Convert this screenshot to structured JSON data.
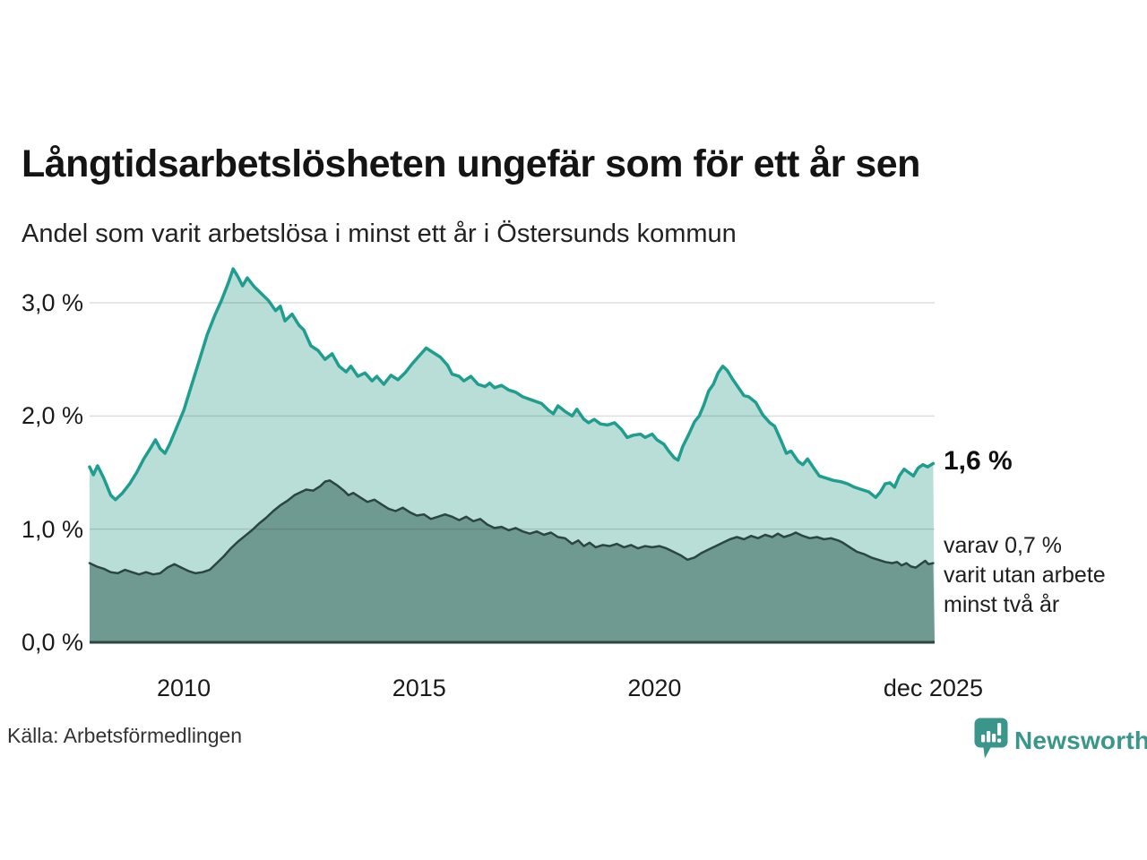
{
  "header": {
    "title": "Långtidsarbetslösheten ungefär som för ett år sen",
    "subtitle": "Andel som varit arbetslösa i minst ett år i Östersunds kommun"
  },
  "annotations": {
    "latest_value": "1,6 %",
    "sub_line_1": "varav 0,7 %",
    "sub_line_2": "varit utan arbete",
    "sub_line_3": "minst två år"
  },
  "source": {
    "label": "Källa: Arbetsförmedlingen"
  },
  "branding": {
    "name": "Newsworthy",
    "icon": "newsworthy-bubble-bar-chart-icon",
    "color": "#3a968b"
  },
  "chart_data": {
    "type": "area",
    "title": "Långtidsarbetslösheten ungefär som för ett år sen",
    "subtitle": "Andel som varit arbetslösa i minst ett år i Östersunds kommun",
    "unit": "%",
    "grid": true,
    "grid_color": "rgba(0,0,0,0.13)",
    "baseline_color": "#2b4641",
    "x_range": [
      2008.0,
      2025.95
    ],
    "y_range": [
      0,
      3.38
    ],
    "y_ticks": [
      {
        "value": 0,
        "label": "0,0 %"
      },
      {
        "value": 1,
        "label": "1,0 %"
      },
      {
        "value": 2,
        "label": "2,0 %"
      },
      {
        "value": 3,
        "label": "3,0 %"
      }
    ],
    "x_ticks": [
      {
        "value": 2010,
        "label": "2010"
      },
      {
        "value": 2015,
        "label": "2015"
      },
      {
        "value": 2020,
        "label": "2020"
      },
      {
        "value": 2025.92,
        "label": "dec 2025"
      }
    ],
    "series": [
      {
        "name": "Arbetslösa minst ett år",
        "latest_label": "1,6 %",
        "line_color": "#1f9e8f",
        "fill_color": "#b9ded8",
        "line_width": 3.5,
        "points": [
          [
            2008.0,
            1.55
          ],
          [
            2008.08,
            1.48
          ],
          [
            2008.17,
            1.56
          ],
          [
            2008.3,
            1.45
          ],
          [
            2008.45,
            1.3
          ],
          [
            2008.55,
            1.26
          ],
          [
            2008.7,
            1.32
          ],
          [
            2008.85,
            1.4
          ],
          [
            2009.0,
            1.5
          ],
          [
            2009.15,
            1.62
          ],
          [
            2009.3,
            1.72
          ],
          [
            2009.4,
            1.79
          ],
          [
            2009.5,
            1.71
          ],
          [
            2009.6,
            1.67
          ],
          [
            2009.7,
            1.75
          ],
          [
            2009.85,
            1.9
          ],
          [
            2010.0,
            2.05
          ],
          [
            2010.15,
            2.25
          ],
          [
            2010.3,
            2.45
          ],
          [
            2010.5,
            2.72
          ],
          [
            2010.65,
            2.88
          ],
          [
            2010.8,
            3.02
          ],
          [
            2010.95,
            3.18
          ],
          [
            2011.05,
            3.3
          ],
          [
            2011.15,
            3.23
          ],
          [
            2011.25,
            3.15
          ],
          [
            2011.35,
            3.22
          ],
          [
            2011.5,
            3.14
          ],
          [
            2011.65,
            3.08
          ],
          [
            2011.8,
            3.02
          ],
          [
            2011.95,
            2.93
          ],
          [
            2012.05,
            2.97
          ],
          [
            2012.15,
            2.84
          ],
          [
            2012.3,
            2.9
          ],
          [
            2012.45,
            2.8
          ],
          [
            2012.55,
            2.76
          ],
          [
            2012.7,
            2.62
          ],
          [
            2012.85,
            2.58
          ],
          [
            2013.0,
            2.5
          ],
          [
            2013.15,
            2.55
          ],
          [
            2013.3,
            2.44
          ],
          [
            2013.45,
            2.39
          ],
          [
            2013.55,
            2.44
          ],
          [
            2013.7,
            2.35
          ],
          [
            2013.85,
            2.38
          ],
          [
            2014.0,
            2.31
          ],
          [
            2014.1,
            2.35
          ],
          [
            2014.25,
            2.28
          ],
          [
            2014.4,
            2.36
          ],
          [
            2014.55,
            2.32
          ],
          [
            2014.7,
            2.38
          ],
          [
            2014.85,
            2.46
          ],
          [
            2015.0,
            2.53
          ],
          [
            2015.15,
            2.6
          ],
          [
            2015.3,
            2.56
          ],
          [
            2015.45,
            2.52
          ],
          [
            2015.6,
            2.45
          ],
          [
            2015.7,
            2.37
          ],
          [
            2015.85,
            2.35
          ],
          [
            2015.95,
            2.31
          ],
          [
            2016.1,
            2.35
          ],
          [
            2016.25,
            2.28
          ],
          [
            2016.4,
            2.26
          ],
          [
            2016.5,
            2.29
          ],
          [
            2016.6,
            2.25
          ],
          [
            2016.75,
            2.27
          ],
          [
            2016.9,
            2.23
          ],
          [
            2017.05,
            2.21
          ],
          [
            2017.2,
            2.17
          ],
          [
            2017.4,
            2.14
          ],
          [
            2017.6,
            2.11
          ],
          [
            2017.75,
            2.05
          ],
          [
            2017.85,
            2.02
          ],
          [
            2017.95,
            2.09
          ],
          [
            2018.1,
            2.04
          ],
          [
            2018.25,
            2.0
          ],
          [
            2018.35,
            2.06
          ],
          [
            2018.5,
            1.97
          ],
          [
            2018.6,
            1.94
          ],
          [
            2018.72,
            1.97
          ],
          [
            2018.85,
            1.93
          ],
          [
            2019.0,
            1.92
          ],
          [
            2019.15,
            1.94
          ],
          [
            2019.3,
            1.88
          ],
          [
            2019.42,
            1.81
          ],
          [
            2019.55,
            1.83
          ],
          [
            2019.7,
            1.84
          ],
          [
            2019.8,
            1.81
          ],
          [
            2019.95,
            1.84
          ],
          [
            2020.05,
            1.79
          ],
          [
            2020.2,
            1.75
          ],
          [
            2020.3,
            1.69
          ],
          [
            2020.42,
            1.63
          ],
          [
            2020.5,
            1.61
          ],
          [
            2020.6,
            1.73
          ],
          [
            2020.72,
            1.83
          ],
          [
            2020.85,
            1.95
          ],
          [
            2020.95,
            2.0
          ],
          [
            2021.05,
            2.1
          ],
          [
            2021.15,
            2.22
          ],
          [
            2021.25,
            2.28
          ],
          [
            2021.35,
            2.38
          ],
          [
            2021.45,
            2.44
          ],
          [
            2021.55,
            2.4
          ],
          [
            2021.65,
            2.33
          ],
          [
            2021.8,
            2.24
          ],
          [
            2021.9,
            2.18
          ],
          [
            2022.0,
            2.17
          ],
          [
            2022.15,
            2.12
          ],
          [
            2022.3,
            2.01
          ],
          [
            2022.45,
            1.94
          ],
          [
            2022.55,
            1.91
          ],
          [
            2022.7,
            1.77
          ],
          [
            2022.8,
            1.67
          ],
          [
            2022.9,
            1.69
          ],
          [
            2023.05,
            1.6
          ],
          [
            2023.15,
            1.57
          ],
          [
            2023.25,
            1.62
          ],
          [
            2023.4,
            1.53
          ],
          [
            2023.5,
            1.47
          ],
          [
            2023.65,
            1.45
          ],
          [
            2023.8,
            1.43
          ],
          [
            2023.95,
            1.42
          ],
          [
            2024.1,
            1.4
          ],
          [
            2024.25,
            1.37
          ],
          [
            2024.4,
            1.35
          ],
          [
            2024.55,
            1.33
          ],
          [
            2024.7,
            1.28
          ],
          [
            2024.8,
            1.33
          ],
          [
            2024.9,
            1.4
          ],
          [
            2025.0,
            1.41
          ],
          [
            2025.1,
            1.37
          ],
          [
            2025.2,
            1.47
          ],
          [
            2025.3,
            1.53
          ],
          [
            2025.4,
            1.5
          ],
          [
            2025.5,
            1.47
          ],
          [
            2025.6,
            1.54
          ],
          [
            2025.7,
            1.57
          ],
          [
            2025.8,
            1.55
          ],
          [
            2025.92,
            1.58
          ]
        ]
      },
      {
        "name": "Utan arbete minst två år",
        "latest_label": "0,7 %",
        "line_color": "#2b4641",
        "fill_color": "#6f9a91",
        "line_width": 2.5,
        "points": [
          [
            2008.0,
            0.7
          ],
          [
            2008.15,
            0.67
          ],
          [
            2008.3,
            0.65
          ],
          [
            2008.45,
            0.62
          ],
          [
            2008.6,
            0.61
          ],
          [
            2008.75,
            0.64
          ],
          [
            2008.9,
            0.62
          ],
          [
            2009.05,
            0.6
          ],
          [
            2009.2,
            0.62
          ],
          [
            2009.35,
            0.6
          ],
          [
            2009.5,
            0.61
          ],
          [
            2009.65,
            0.66
          ],
          [
            2009.8,
            0.69
          ],
          [
            2009.95,
            0.66
          ],
          [
            2010.1,
            0.63
          ],
          [
            2010.25,
            0.61
          ],
          [
            2010.4,
            0.62
          ],
          [
            2010.55,
            0.64
          ],
          [
            2010.7,
            0.7
          ],
          [
            2010.85,
            0.76
          ],
          [
            2011.0,
            0.83
          ],
          [
            2011.15,
            0.89
          ],
          [
            2011.3,
            0.94
          ],
          [
            2011.45,
            0.99
          ],
          [
            2011.6,
            1.05
          ],
          [
            2011.75,
            1.1
          ],
          [
            2011.9,
            1.16
          ],
          [
            2012.05,
            1.21
          ],
          [
            2012.2,
            1.25
          ],
          [
            2012.35,
            1.3
          ],
          [
            2012.5,
            1.33
          ],
          [
            2012.6,
            1.35
          ],
          [
            2012.75,
            1.34
          ],
          [
            2012.9,
            1.38
          ],
          [
            2013.0,
            1.42
          ],
          [
            2013.1,
            1.43
          ],
          [
            2013.25,
            1.39
          ],
          [
            2013.4,
            1.34
          ],
          [
            2013.5,
            1.3
          ],
          [
            2013.6,
            1.32
          ],
          [
            2013.75,
            1.28
          ],
          [
            2013.9,
            1.24
          ],
          [
            2014.05,
            1.26
          ],
          [
            2014.2,
            1.22
          ],
          [
            2014.35,
            1.18
          ],
          [
            2014.5,
            1.16
          ],
          [
            2014.65,
            1.19
          ],
          [
            2014.8,
            1.15
          ],
          [
            2014.95,
            1.12
          ],
          [
            2015.1,
            1.13
          ],
          [
            2015.25,
            1.09
          ],
          [
            2015.4,
            1.11
          ],
          [
            2015.55,
            1.13
          ],
          [
            2015.7,
            1.11
          ],
          [
            2015.85,
            1.08
          ],
          [
            2016.0,
            1.11
          ],
          [
            2016.15,
            1.07
          ],
          [
            2016.3,
            1.09
          ],
          [
            2016.45,
            1.04
          ],
          [
            2016.6,
            1.01
          ],
          [
            2016.75,
            1.02
          ],
          [
            2016.9,
            0.99
          ],
          [
            2017.05,
            1.01
          ],
          [
            2017.2,
            0.98
          ],
          [
            2017.35,
            0.96
          ],
          [
            2017.5,
            0.98
          ],
          [
            2017.65,
            0.95
          ],
          [
            2017.8,
            0.97
          ],
          [
            2017.95,
            0.93
          ],
          [
            2018.1,
            0.92
          ],
          [
            2018.25,
            0.87
          ],
          [
            2018.38,
            0.9
          ],
          [
            2018.5,
            0.85
          ],
          [
            2018.62,
            0.88
          ],
          [
            2018.75,
            0.84
          ],
          [
            2018.9,
            0.86
          ],
          [
            2019.05,
            0.85
          ],
          [
            2019.2,
            0.87
          ],
          [
            2019.35,
            0.84
          ],
          [
            2019.5,
            0.86
          ],
          [
            2019.65,
            0.83
          ],
          [
            2019.8,
            0.85
          ],
          [
            2019.95,
            0.84
          ],
          [
            2020.1,
            0.85
          ],
          [
            2020.25,
            0.83
          ],
          [
            2020.4,
            0.8
          ],
          [
            2020.55,
            0.77
          ],
          [
            2020.7,
            0.73
          ],
          [
            2020.85,
            0.75
          ],
          [
            2021.0,
            0.79
          ],
          [
            2021.15,
            0.82
          ],
          [
            2021.3,
            0.85
          ],
          [
            2021.45,
            0.88
          ],
          [
            2021.6,
            0.91
          ],
          [
            2021.75,
            0.93
          ],
          [
            2021.9,
            0.91
          ],
          [
            2022.05,
            0.94
          ],
          [
            2022.2,
            0.92
          ],
          [
            2022.35,
            0.95
          ],
          [
            2022.5,
            0.93
          ],
          [
            2022.62,
            0.96
          ],
          [
            2022.75,
            0.93
          ],
          [
            2022.9,
            0.95
          ],
          [
            2023.0,
            0.97
          ],
          [
            2023.15,
            0.94
          ],
          [
            2023.3,
            0.92
          ],
          [
            2023.45,
            0.93
          ],
          [
            2023.6,
            0.91
          ],
          [
            2023.75,
            0.92
          ],
          [
            2023.9,
            0.9
          ],
          [
            2024.0,
            0.88
          ],
          [
            2024.15,
            0.84
          ],
          [
            2024.3,
            0.8
          ],
          [
            2024.45,
            0.78
          ],
          [
            2024.6,
            0.75
          ],
          [
            2024.75,
            0.73
          ],
          [
            2024.9,
            0.71
          ],
          [
            2025.05,
            0.7
          ],
          [
            2025.15,
            0.71
          ],
          [
            2025.25,
            0.68
          ],
          [
            2025.35,
            0.7
          ],
          [
            2025.45,
            0.67
          ],
          [
            2025.55,
            0.66
          ],
          [
            2025.65,
            0.69
          ],
          [
            2025.75,
            0.72
          ],
          [
            2025.82,
            0.69
          ],
          [
            2025.92,
            0.7
          ]
        ]
      }
    ]
  }
}
